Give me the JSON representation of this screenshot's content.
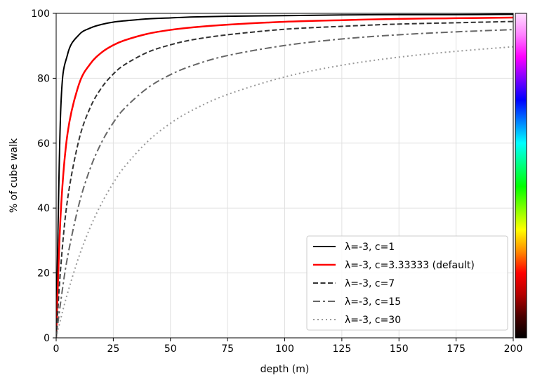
{
  "chart_data": {
    "type": "line",
    "title": "",
    "xlabel": "depth (m)",
    "ylabel": "% of cube walk",
    "xlim": [
      0,
      200
    ],
    "ylim": [
      0,
      100
    ],
    "x_ticks": [
      0,
      25,
      50,
      75,
      100,
      125,
      150,
      175,
      200
    ],
    "y_ticks": [
      0,
      20,
      40,
      60,
      80,
      100
    ],
    "grid": true,
    "legend_position": "lower-right",
    "x": [
      0,
      2,
      5,
      10,
      15,
      20,
      25,
      30,
      40,
      50,
      60,
      75,
      100,
      125,
      150,
      175,
      200
    ],
    "series": [
      {
        "name": "λ=-3, c=1",
        "color": "#000000",
        "style": "solid",
        "values": [
          0,
          70.4,
          87.4,
          93.4,
          95.5,
          96.6,
          97.3,
          97.7,
          98.3,
          98.6,
          98.9,
          99.1,
          99.3,
          99.5,
          99.6,
          99.6,
          99.7
        ]
      },
      {
        "name": "λ=-3, c=3.33333  (default)",
        "color": "#ff0000",
        "style": "solid",
        "values": [
          0,
          38.5,
          63.1,
          78.2,
          84.5,
          88.0,
          90.2,
          91.7,
          93.7,
          94.9,
          95.7,
          96.5,
          97.4,
          97.9,
          98.3,
          98.5,
          98.7
        ]
      },
      {
        "name": "λ=-3, c=7",
        "color": "#333333",
        "style": "dashed",
        "values": [
          0,
          21.8,
          42.8,
          61.1,
          71.1,
          77.2,
          81.3,
          84.2,
          88.0,
          90.3,
          91.9,
          93.4,
          95.1,
          96.0,
          96.7,
          97.1,
          97.5
        ]
      },
      {
        "name": "λ=-3, c=15",
        "color": "#666666",
        "style": "dashdot",
        "values": [
          0,
          11.2,
          25.0,
          41.2,
          52.4,
          60.4,
          66.3,
          70.8,
          77.0,
          81.1,
          84.0,
          87.0,
          90.1,
          92.1,
          93.4,
          94.3,
          95.0
        ]
      },
      {
        "name": "λ=-3, c=30",
        "color": "#999999",
        "style": "dotted",
        "values": [
          0,
          5.9,
          13.8,
          25.1,
          34.2,
          41.6,
          47.7,
          52.8,
          60.5,
          66.1,
          70.3,
          75.0,
          80.4,
          84.0,
          86.5,
          88.3,
          89.7
        ]
      }
    ],
    "colorbar": {
      "orientation": "vertical",
      "colormap": "gist_ncar-like",
      "stops": [
        "#000000",
        "#4a0000",
        "#b40000",
        "#ff0000",
        "#ff8c00",
        "#ffff00",
        "#80ff00",
        "#00ff00",
        "#00ff80",
        "#00ffff",
        "#0080ff",
        "#0000ff",
        "#8000ff",
        "#ff00ff",
        "#ff80ff",
        "#ffe0ff"
      ]
    }
  }
}
